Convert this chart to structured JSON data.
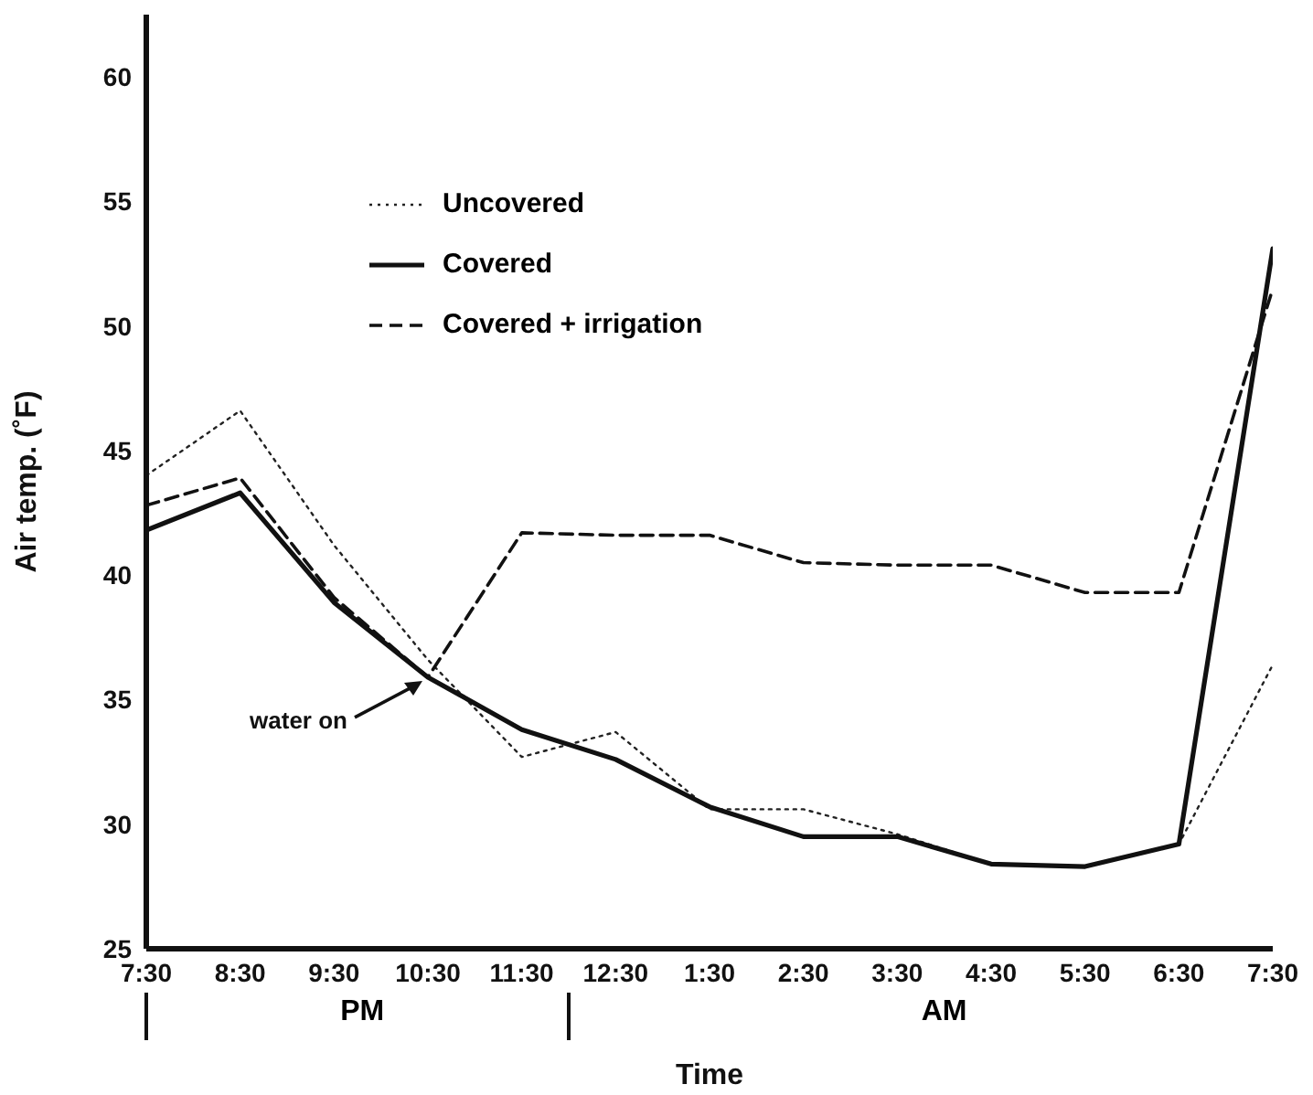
{
  "chart_data": {
    "type": "line",
    "xlabel": "Time",
    "ylabel": "Air temp. (˚F)",
    "categories": [
      "7:30",
      "8:30",
      "9:30",
      "10:30",
      "11:30",
      "12:30",
      "1:30",
      "2:30",
      "3:30",
      "4:30",
      "5:30",
      "6:30",
      "7:30"
    ],
    "series": [
      {
        "name": "Uncovered",
        "color": "#222222",
        "line_style": "dotted",
        "values": [
          44.0,
          46.6,
          41.2,
          36.6,
          32.7,
          33.7,
          30.6,
          30.6,
          29.6,
          28.4,
          28.3,
          29.2,
          36.4
        ]
      },
      {
        "name": "Covered",
        "color": "#111111",
        "line_style": "solid",
        "values": [
          41.8,
          43.3,
          38.9,
          35.9,
          33.8,
          32.6,
          30.7,
          29.5,
          29.5,
          28.4,
          28.3,
          29.2,
          53.1
        ]
      },
      {
        "name": "Covered + irrigation",
        "color": "#111111",
        "line_style": "dashed",
        "values": [
          42.8,
          43.9,
          39.1,
          35.9,
          41.7,
          41.6,
          41.6,
          40.5,
          40.4,
          40.4,
          39.3,
          39.3,
          51.5
        ]
      }
    ],
    "ylim": [
      25,
      62.5
    ],
    "yticks": [
      25,
      30,
      35,
      40,
      45,
      50,
      55,
      60
    ],
    "grid": false,
    "legend": "top left",
    "marker": "none",
    "annotations": [
      {
        "text": "water on",
        "x": "10:30",
        "y": 35.9
      },
      "PM",
      "AM"
    ]
  }
}
